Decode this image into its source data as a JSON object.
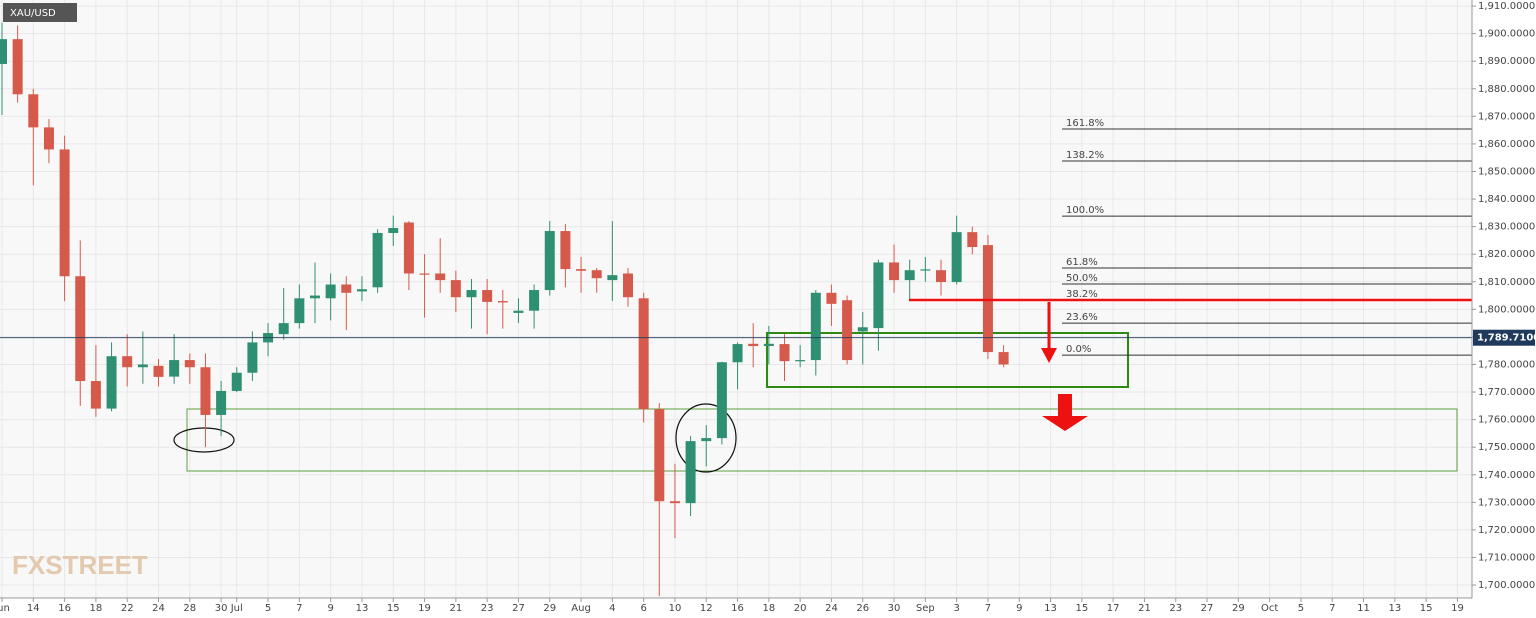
{
  "chart_data": {
    "type": "candlestick",
    "title": "XAU/USD",
    "watermark": "FXSTREET",
    "categories": [
      "Jun",
      null,
      "14",
      null,
      "16",
      null,
      "18",
      null,
      "22",
      null,
      "24",
      null,
      "28",
      null,
      "30",
      "Jul",
      null,
      "5",
      null,
      "7",
      null,
      "9",
      null,
      "13",
      null,
      "15",
      null,
      "19",
      null,
      "21",
      null,
      "23",
      null,
      "27",
      null,
      "29",
      null,
      "Aug",
      null,
      "4",
      null,
      "6",
      null,
      "10",
      null,
      "12",
      null,
      "16",
      null,
      "18",
      null,
      "20",
      null,
      "24",
      null,
      "26",
      null,
      "30",
      null,
      "Sep",
      null,
      "3",
      null,
      "7",
      null,
      "9",
      null,
      "13",
      null,
      "15",
      null,
      "17",
      null,
      "21",
      null,
      "23",
      null,
      "27",
      null,
      "29",
      null,
      "Oct",
      null,
      "5",
      null,
      "7",
      null,
      "11",
      null,
      "13",
      null,
      "15",
      null,
      "19"
    ],
    "open": [
      1889,
      1898,
      1878,
      1866,
      1858,
      1812,
      1774,
      1764,
      1783,
      1779,
      1779.5,
      1775.6,
      1781.6,
      1779,
      1761.7,
      1770.4,
      1777,
      1788,
      1791,
      1795,
      1804,
      1804,
      1809,
      1806.5,
      1808,
      1827.7,
      1831.5,
      1813,
      1813,
      1810.6,
      1804.4,
      1807,
      1803,
      1798.7,
      1799.5,
      1807,
      1828.4,
      1814.6,
      1814.2,
      1810.6,
      1813,
      1804,
      1763.8,
      1730.4,
      1729.7,
      1752.2,
      1753.3,
      1780.8,
      1787.5,
      1786.7,
      1787.4,
      1781.2,
      1781.6,
      1806,
      1803.3,
      1792,
      1793.2,
      1817,
      1810.6,
      1814.2,
      1814.2,
      1809.9,
      1828,
      1823.3,
      1784.5,
      null,
      null,
      null,
      null,
      null,
      null,
      null,
      null,
      null,
      null,
      null,
      null,
      null,
      null,
      null,
      null,
      null,
      null,
      null,
      null,
      null,
      null,
      null,
      null,
      null,
      null,
      null,
      null,
      null
    ],
    "high": [
      1904,
      1903,
      1880,
      1869,
      1863,
      1825,
      1787,
      1788,
      1791,
      1792,
      1782,
      1791,
      1784,
      1784,
      1774,
      1779,
      1792,
      1795,
      1807.7,
      1809,
      1817,
      1813,
      1812,
      1812,
      1829,
      1834,
      1832,
      1820,
      1825.8,
      1814,
      1811,
      1811,
      1807,
      1804,
      1809,
      1832,
      1831,
      1819,
      1815,
      1832,
      1815,
      1806,
      1766,
      1744,
      1754,
      1758,
      1781,
      1788,
      1795,
      1794,
      1791,
      1787,
      1807,
      1809,
      1805,
      1799,
      1818,
      1823.5,
      1818,
      1819,
      1818,
      1834,
      1830,
      1827,
      1787,
      null,
      null,
      null,
      null,
      null,
      null,
      null,
      null,
      null,
      null,
      null,
      null,
      null,
      null,
      null,
      null,
      null,
      null,
      null,
      null,
      null,
      null,
      null,
      null,
      null,
      null,
      null,
      null,
      null
    ],
    "low": [
      1870.5,
      1875,
      1845,
      1853,
      1803,
      1765,
      1761,
      1763,
      1772,
      1773,
      1772,
      1773,
      1773,
      1750,
      1754,
      1770,
      1774,
      1783,
      1789,
      1793,
      1795,
      1796,
      1792.5,
      1803,
      1806,
      1823,
      1807,
      1797,
      1806,
      1799,
      1793,
      1791,
      1793,
      1795,
      1793,
      1805,
      1808,
      1806,
      1806,
      1803,
      1801,
      1759,
      1696,
      1717,
      1725,
      1743,
      1751,
      1771,
      1779,
      1780,
      1774,
      1779,
      1776,
      1794,
      1780,
      1780,
      1785,
      1806,
      1803,
      1810,
      1805,
      1809,
      1820,
      1782,
      1779,
      null,
      null,
      null,
      null,
      null,
      null,
      null,
      null,
      null,
      null,
      null,
      null,
      null,
      null,
      null,
      null,
      null,
      null,
      null,
      null,
      null,
      null,
      null,
      null,
      null,
      null,
      null,
      null,
      null
    ],
    "close": [
      1898,
      1878,
      1866,
      1858,
      1812,
      1774,
      1764,
      1783,
      1779,
      1780,
      1775.5,
      1781.6,
      1779,
      1761.7,
      1770.4,
      1777,
      1788,
      1791.4,
      1795,
      1804,
      1805,
      1809,
      1806,
      1807.3,
      1827.7,
      1829.5,
      1813,
      1812.8,
      1810.6,
      1804.4,
      1807,
      1802.7,
      1802.5,
      1799.5,
      1807,
      1828.4,
      1814.6,
      1814,
      1811.3,
      1812.4,
      1804.4,
      1763.8,
      1730.4,
      1729.7,
      1752.2,
      1753.3,
      1780.8,
      1787.4,
      1786.7,
      1787.5,
      1781.2,
      1781.6,
      1806,
      1802,
      1781.6,
      1793.5,
      1817,
      1810.6,
      1814.2,
      1814.5,
      1809.9,
      1828,
      1822.6,
      1784.5,
      1780,
      null,
      null,
      null,
      null,
      null,
      null,
      null,
      null,
      null,
      null,
      null,
      null,
      null,
      null,
      null,
      null,
      null,
      null,
      null,
      null,
      null,
      null,
      null,
      null,
      null,
      null,
      null,
      null,
      null
    ],
    "up_color": "#2f8f72",
    "down_color": "#d65a4c",
    "ylim": [
      1695.3,
      1912.2
    ],
    "yticks": [
      {
        "value": 1700,
        "label": "1,700.0000"
      },
      {
        "value": 1710,
        "label": "1,710.0000"
      },
      {
        "value": 1720,
        "label": "1,720.0000"
      },
      {
        "value": 1730,
        "label": "1,730.0000"
      },
      {
        "value": 1740,
        "label": "1,740.0000"
      },
      {
        "value": 1750,
        "label": "1,750.0000"
      },
      {
        "value": 1760,
        "label": "1,760.0000"
      },
      {
        "value": 1770,
        "label": "1,770.0000"
      },
      {
        "value": 1780,
        "label": "1,780.0000"
      },
      {
        "value": 1790,
        "label": "1,790.0000"
      },
      {
        "value": 1800,
        "label": "1,800.0000"
      },
      {
        "value": 1810,
        "label": "1,810.0000"
      },
      {
        "value": 1820,
        "label": "1,820.0000"
      },
      {
        "value": 1830,
        "label": "1,830.0000"
      },
      {
        "value": 1840,
        "label": "1,840.0000"
      },
      {
        "value": 1850,
        "label": "1,850.0000"
      },
      {
        "value": 1860,
        "label": "1,860.0000"
      },
      {
        "value": 1870,
        "label": "1,870.0000"
      },
      {
        "value": 1880,
        "label": "1,880.0000"
      },
      {
        "value": 1890,
        "label": "1,890.0000"
      },
      {
        "value": 1900,
        "label": "1,900.0000"
      },
      {
        "value": 1910,
        "label": "1,910.0000"
      }
    ],
    "last_price": {
      "value": 1789.71,
      "label": "1,789.7100"
    },
    "fib_levels": [
      {
        "label": "161.8%",
        "value": 1865.4
      },
      {
        "label": "138.2%",
        "value": 1853.8
      },
      {
        "label": "100.0%",
        "value": 1833.8
      },
      {
        "label": "61.8%",
        "value": 1815
      },
      {
        "label": "50.0%",
        "value": 1809.2
      },
      {
        "label": "38.2%",
        "value": 1803.4
      },
      {
        "label": "23.6%",
        "value": 1795
      },
      {
        "label": "0.0%",
        "value": 1783.4
      }
    ],
    "grid": true
  }
}
